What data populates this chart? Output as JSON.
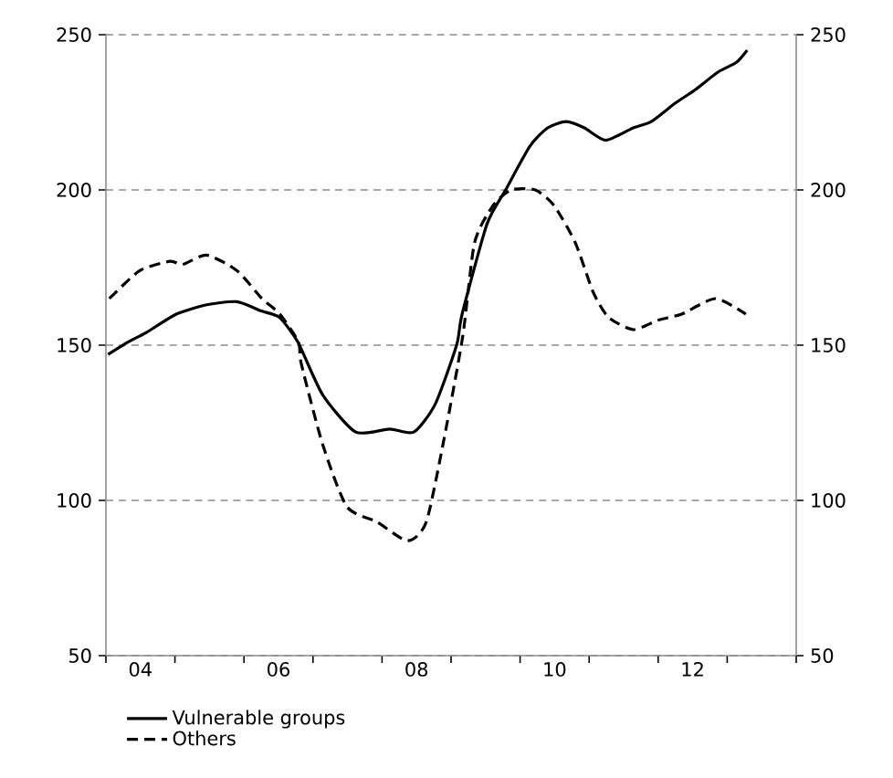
{
  "chart_data": {
    "type": "line",
    "xlim": [
      3.5,
      13.5
    ],
    "xticks": [
      {
        "value": 3.5,
        "label": null
      },
      {
        "value": 4.5,
        "label": null
      },
      {
        "value": 5.5,
        "label": null
      },
      {
        "value": 6.5,
        "label": null
      },
      {
        "value": 7.5,
        "label": null
      },
      {
        "value": 8.5,
        "label": null
      },
      {
        "value": 9.5,
        "label": null
      },
      {
        "value": 10.5,
        "label": null
      },
      {
        "value": 11.5,
        "label": null
      },
      {
        "value": 12.5,
        "label": null
      },
      {
        "value": 13.5,
        "label": null
      },
      {
        "value": 4,
        "label": "04"
      },
      {
        "value": 6,
        "label": "06"
      },
      {
        "value": 8,
        "label": "08"
      },
      {
        "value": 10,
        "label": "10"
      },
      {
        "value": 12,
        "label": "12"
      }
    ],
    "ylim": [
      50,
      250
    ],
    "yticks": [
      50,
      100,
      150,
      200,
      250
    ],
    "y2lim": [
      50,
      250
    ],
    "y2ticks": [
      50,
      100,
      150,
      200,
      250
    ],
    "grid": "y",
    "legend": "bottom",
    "series": [
      {
        "name": "Vulnerable groups",
        "color": "#000000",
        "line_style": "solid",
        "x": [
          3.53,
          3.82,
          4.08,
          4.52,
          4.96,
          5.4,
          5.75,
          6.01,
          6.28,
          6.64,
          7.12,
          7.61,
          7.96,
          8.27,
          8.58,
          8.66,
          9.02,
          9.29,
          9.64,
          9.9,
          10.17,
          10.43,
          10.74,
          11.14,
          11.4,
          11.75,
          12.02,
          12.37,
          12.63,
          12.79
        ],
        "values": [
          147,
          151,
          154,
          160,
          163,
          164,
          161,
          159,
          151,
          134,
          122,
          123,
          122,
          131,
          150,
          160,
          189,
          200,
          214,
          220,
          222,
          220,
          216,
          220,
          222,
          228,
          232,
          238,
          241,
          245
        ]
      },
      {
        "name": "Others",
        "color": "#000000",
        "line_style": "dashed",
        "x": [
          3.55,
          3.99,
          4.43,
          4.61,
          4.96,
          5.4,
          5.76,
          6.02,
          6.29,
          6.33,
          6.64,
          6.99,
          7.43,
          7.87,
          8.14,
          8.4,
          8.67,
          8.84,
          9.11,
          9.37,
          9.72,
          9.99,
          10.3,
          10.56,
          10.78,
          11.14,
          11.49,
          11.84,
          12.33,
          12.77
        ],
        "values": [
          165,
          174,
          177,
          176,
          179,
          174,
          165,
          160,
          151,
          144,
          118,
          98,
          93,
          87,
          93,
          120,
          153,
          183,
          195,
          200,
          200,
          195,
          183,
          167,
          159,
          155,
          158,
          160,
          165,
          160
        ]
      }
    ]
  }
}
